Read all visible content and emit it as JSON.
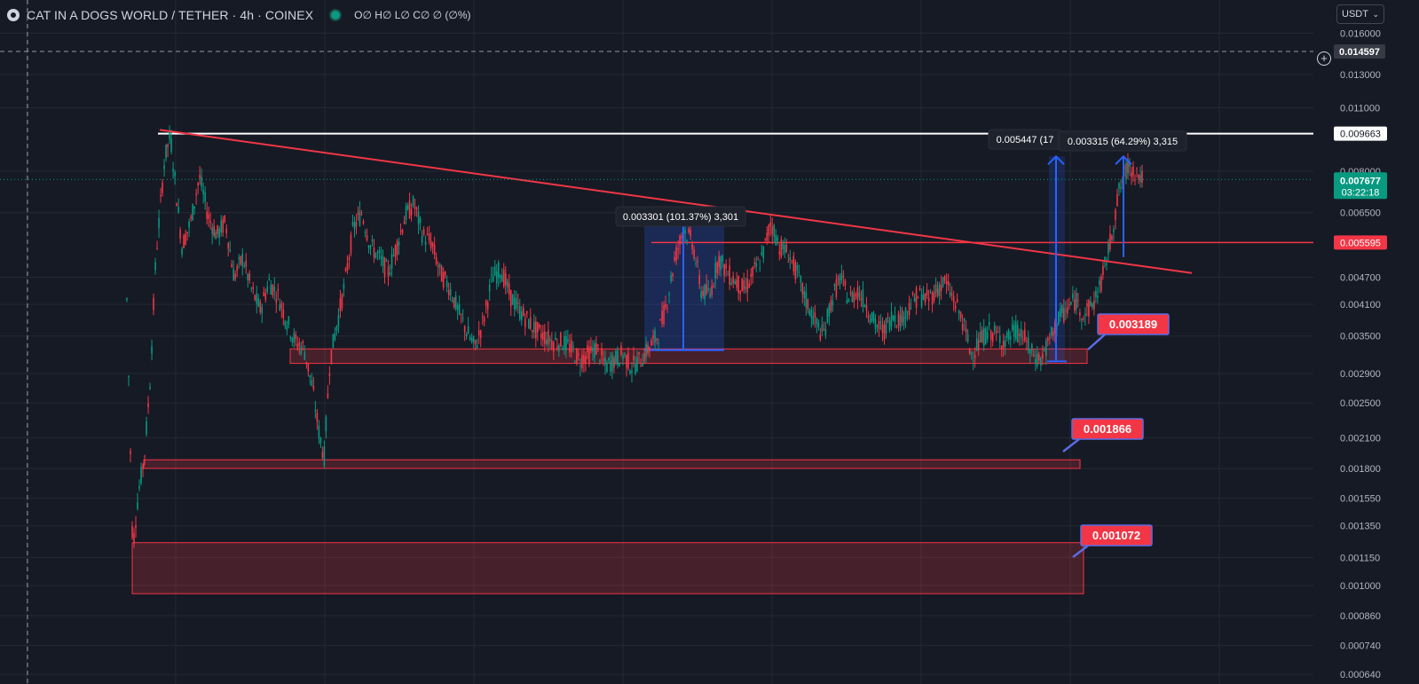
{
  "header": {
    "symbol": "CAT IN A DOGS WORLD / TETHER · 4h · COINEX",
    "ohlc": "O∅ H∅ L∅ C∅ ∅ (∅%)",
    "currency": "USDT",
    "plus_icon": "plus-circle-icon",
    "logo_icon": "symbol-logo-icon"
  },
  "chart_data": {
    "type": "candlestick",
    "y_axis": {
      "scale": "log",
      "ticks": [
        "0.016000",
        "0.013000",
        "0.011000",
        "0.008000",
        "0.006500",
        "0.004700",
        "0.004100",
        "0.003500",
        "0.002900",
        "0.002500",
        "0.002100",
        "0.001800",
        "0.001550",
        "0.001350",
        "0.001150",
        "0.001000",
        "0.000860",
        "0.000740",
        "0.000640"
      ],
      "range": [
        0.00061,
        0.0189
      ]
    },
    "grid": true,
    "price_series": [
      [
        0,
        0.0042
      ],
      [
        2,
        0.0012
      ],
      [
        4,
        0.0016
      ],
      [
        6,
        0.0019
      ],
      [
        8,
        0.0028
      ],
      [
        10,
        0.0052
      ],
      [
        13,
        0.0085
      ],
      [
        15,
        0.0096
      ],
      [
        17,
        0.0072
      ],
      [
        19,
        0.0055
      ],
      [
        22,
        0.0062
      ],
      [
        25,
        0.0078
      ],
      [
        28,
        0.0064
      ],
      [
        31,
        0.0058
      ],
      [
        34,
        0.0062
      ],
      [
        37,
        0.0047
      ],
      [
        40,
        0.0052
      ],
      [
        43,
        0.0044
      ],
      [
        46,
        0.004
      ],
      [
        49,
        0.0046
      ],
      [
        52,
        0.0043
      ],
      [
        55,
        0.0038
      ],
      [
        58,
        0.0034
      ],
      [
        61,
        0.0033
      ],
      [
        64,
        0.0027
      ],
      [
        66,
        0.0022
      ],
      [
        68,
        0.0019
      ],
      [
        70,
        0.0031
      ],
      [
        72,
        0.0036
      ],
      [
        75,
        0.0045
      ],
      [
        78,
        0.006
      ],
      [
        81,
        0.0065
      ],
      [
        84,
        0.0055
      ],
      [
        87,
        0.0052
      ],
      [
        90,
        0.0048
      ],
      [
        93,
        0.0055
      ],
      [
        96,
        0.0064
      ],
      [
        99,
        0.0068
      ],
      [
        102,
        0.0058
      ],
      [
        105,
        0.0056
      ],
      [
        108,
        0.0048
      ],
      [
        111,
        0.0045
      ],
      [
        114,
        0.004
      ],
      [
        117,
        0.0036
      ],
      [
        120,
        0.0033
      ],
      [
        123,
        0.0038
      ],
      [
        126,
        0.0047
      ],
      [
        129,
        0.0049
      ],
      [
        132,
        0.0043
      ],
      [
        135,
        0.004
      ],
      [
        138,
        0.0038
      ],
      [
        141,
        0.0036
      ],
      [
        144,
        0.0035
      ],
      [
        147,
        0.0034
      ],
      [
        150,
        0.0034
      ],
      [
        153,
        0.0033
      ],
      [
        156,
        0.0031
      ],
      [
        159,
        0.0032
      ],
      [
        162,
        0.0033
      ],
      [
        165,
        0.003
      ],
      [
        168,
        0.0031
      ],
      [
        171,
        0.0032
      ],
      [
        174,
        0.003
      ],
      [
        177,
        0.0031
      ],
      [
        180,
        0.0033
      ],
      [
        183,
        0.0035
      ],
      [
        186,
        0.0041
      ],
      [
        189,
        0.0052
      ],
      [
        192,
        0.006
      ],
      [
        195,
        0.0056
      ],
      [
        198,
        0.0044
      ],
      [
        201,
        0.0043
      ],
      [
        204,
        0.0052
      ],
      [
        207,
        0.0048
      ],
      [
        210,
        0.0046
      ],
      [
        213,
        0.0044
      ],
      [
        216,
        0.0048
      ],
      [
        219,
        0.0052
      ],
      [
        222,
        0.0062
      ],
      [
        225,
        0.0055
      ],
      [
        228,
        0.0053
      ],
      [
        231,
        0.0048
      ],
      [
        234,
        0.0042
      ],
      [
        237,
        0.0038
      ],
      [
        240,
        0.0035
      ],
      [
        243,
        0.0042
      ],
      [
        246,
        0.0047
      ],
      [
        249,
        0.0042
      ],
      [
        252,
        0.0044
      ],
      [
        255,
        0.0041
      ],
      [
        258,
        0.0037
      ],
      [
        261,
        0.0036
      ],
      [
        264,
        0.0039
      ],
      [
        267,
        0.0038
      ],
      [
        270,
        0.0041
      ],
      [
        273,
        0.0043
      ],
      [
        276,
        0.0042
      ],
      [
        279,
        0.0044
      ],
      [
        282,
        0.0046
      ],
      [
        285,
        0.0042
      ],
      [
        288,
        0.0038
      ],
      [
        291,
        0.0032
      ],
      [
        294,
        0.0034
      ],
      [
        297,
        0.0036
      ],
      [
        300,
        0.0035
      ],
      [
        303,
        0.0034
      ],
      [
        306,
        0.0036
      ],
      [
        309,
        0.0035
      ],
      [
        312,
        0.0032
      ],
      [
        315,
        0.0031
      ],
      [
        318,
        0.0034
      ],
      [
        321,
        0.0038
      ],
      [
        324,
        0.004
      ],
      [
        327,
        0.0042
      ],
      [
        330,
        0.0039
      ],
      [
        333,
        0.0041
      ],
      [
        336,
        0.0046
      ],
      [
        339,
        0.0056
      ],
      [
        342,
        0.0072
      ],
      [
        345,
        0.0082
      ],
      [
        348,
        0.008
      ],
      [
        350,
        0.0077
      ]
    ],
    "current_price": {
      "value": "0.007677",
      "countdown": "03:22:18",
      "color": "#089981"
    },
    "price_labels": [
      {
        "value": "0.014597",
        "style": "crosshair",
        "color": "#363a45"
      },
      {
        "value": "0.009663",
        "style": "line",
        "color": "#ffffff"
      },
      {
        "value": "0.005595",
        "style": "line",
        "color": "#f23645"
      }
    ],
    "horizontal_lines": [
      {
        "price": 0.009663,
        "color": "#ffffff"
      },
      {
        "price": 0.005595,
        "color": "#f23645"
      }
    ],
    "trendline": {
      "from": [
        0.00985
      ],
      "to": [
        0.0048
      ],
      "color": "#f23645"
    },
    "zones": [
      {
        "top": 0.00328,
        "bottom": 0.00305,
        "label": "0.003189"
      },
      {
        "top": 0.00188,
        "bottom": 0.0018,
        "label": "0.001866"
      },
      {
        "top": 0.00124,
        "bottom": 0.00096,
        "label": "0.001072"
      }
    ],
    "measurements": [
      {
        "label": "0.003301 (101.37%) 3,301",
        "from": 0.00326,
        "to": 0.00655
      },
      {
        "label": "0.005447 (17",
        "from": 0.00308,
        "to": 0.00862
      },
      {
        "label": "0.003315 (64.29%) 3,315",
        "from": 0.0052,
        "to": 0.00862
      }
    ],
    "colors": {
      "up": "#089981",
      "down": "#f23645",
      "measure": "#2962ff",
      "background": "#161a25",
      "grid": "#242833"
    }
  }
}
